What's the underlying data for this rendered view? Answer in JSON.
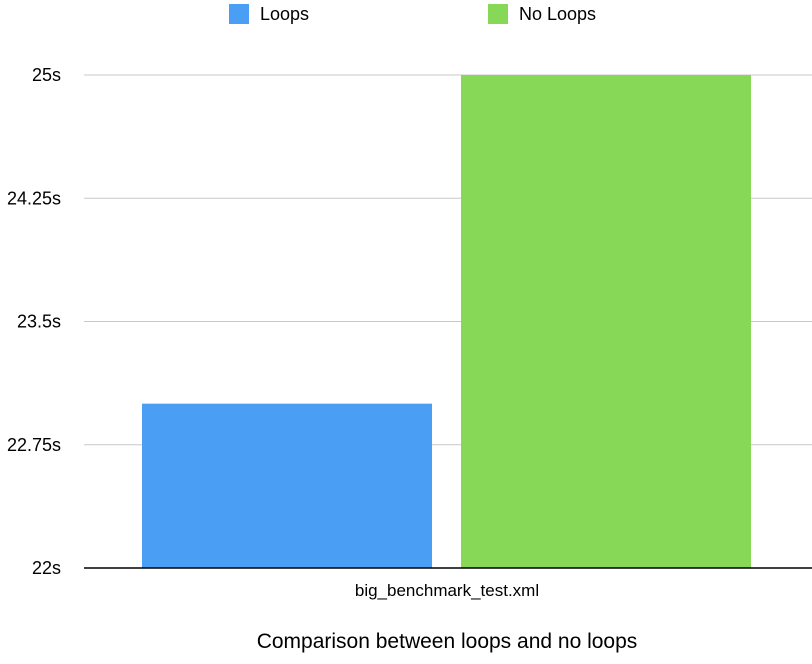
{
  "chart_data": {
    "type": "bar",
    "categories": [
      "big_benchmark_test.xml"
    ],
    "series": [
      {
        "name": "Loops",
        "values": [
          23
        ],
        "color": "#4a9ff5"
      },
      {
        "name": "No Loops",
        "values": [
          25
        ],
        "color": "#88d858"
      }
    ],
    "xlabel": "Comparison between loops and no loops",
    "ylabel": "",
    "ylim": [
      22,
      25
    ],
    "yticks": [
      22,
      22.75,
      23.5,
      24.25,
      25
    ],
    "ytick_labels": [
      "22s",
      "22.75s",
      "23.5s",
      "24.25s",
      "25s"
    ],
    "grid": true,
    "legend_position": "top"
  }
}
